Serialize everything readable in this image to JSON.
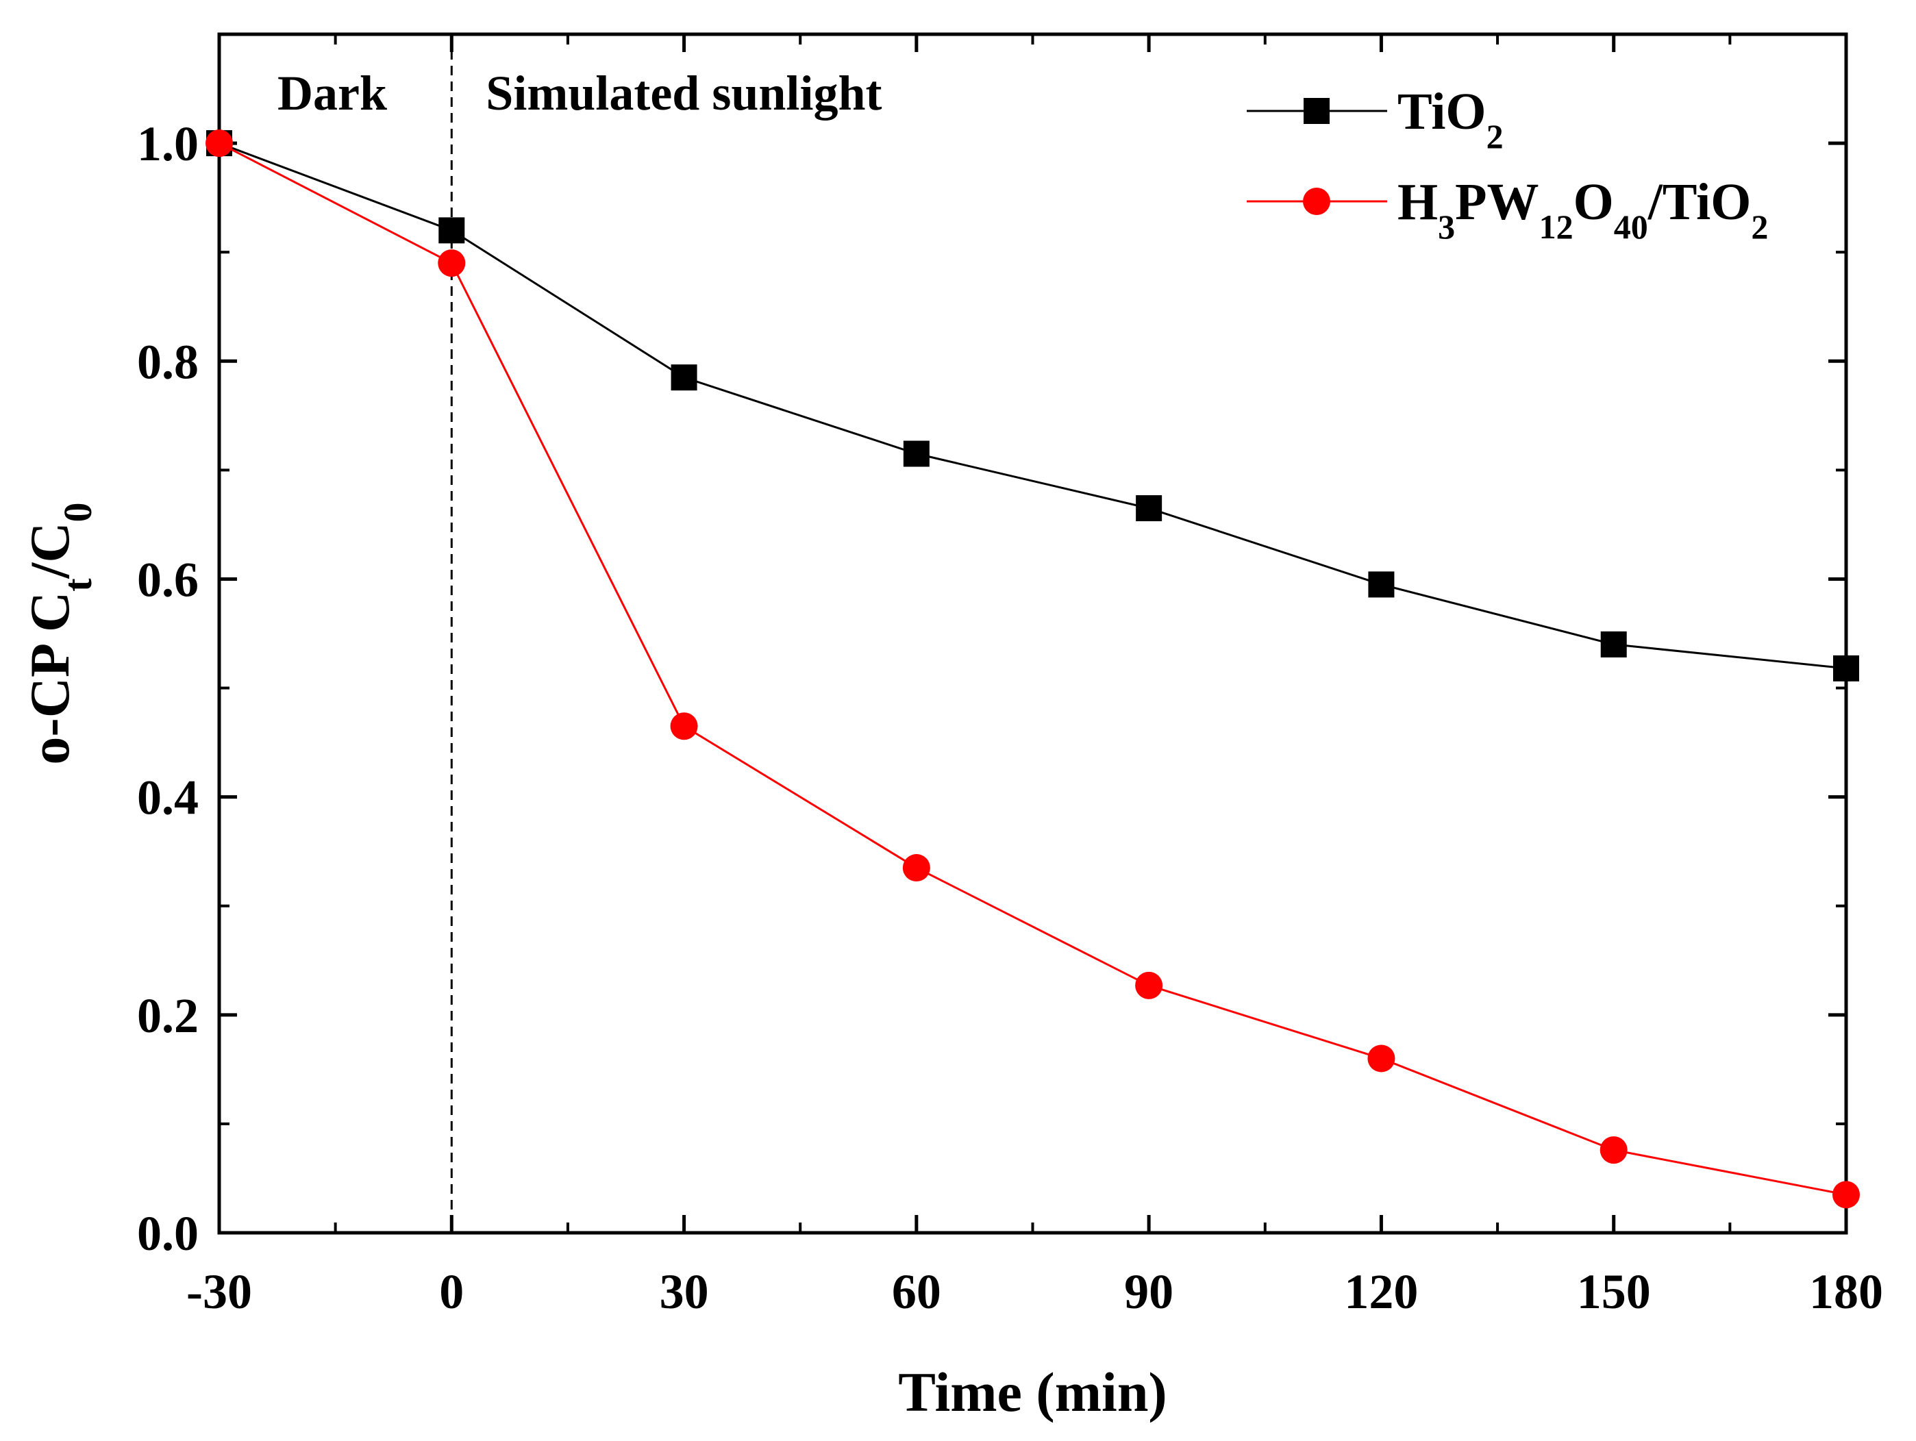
{
  "chart_data": {
    "type": "line",
    "title": "",
    "xlabel": "Time (min)",
    "ylabel": {
      "prefix": "o-CP C",
      "sub1": "t",
      "mid": "/C",
      "sub2": "0"
    },
    "xlim": [
      -30,
      180
    ],
    "ylim": [
      0.0,
      1.1
    ],
    "xticks": [
      -30,
      0,
      30,
      60,
      90,
      120,
      150,
      180
    ],
    "xtick_labels": [
      "-30",
      "0",
      "30",
      "60",
      "90",
      "120",
      "150",
      "180"
    ],
    "yticks": [
      0.0,
      0.2,
      0.4,
      0.6,
      0.8,
      1.0
    ],
    "ytick_labels": [
      "0.0",
      "0.2",
      "0.4",
      "0.6",
      "0.8",
      "1.0"
    ],
    "grid": false,
    "legend_position": "top-right",
    "annotations": {
      "dark": "Dark",
      "light": "Simulated sunlight",
      "divider_x": 0
    },
    "x": [
      -30,
      0,
      30,
      60,
      90,
      120,
      150,
      180
    ],
    "series": [
      {
        "name": "TiO2",
        "label_parts": [
          {
            "t": "TiO",
            "sub": false
          },
          {
            "t": "2",
            "sub": true
          }
        ],
        "color": "#000000",
        "marker": "square",
        "values": [
          1.0,
          0.92,
          0.785,
          0.715,
          0.665,
          0.595,
          0.54,
          0.518
        ]
      },
      {
        "name": "H3PW12O40/TiO2",
        "label_parts": [
          {
            "t": "H",
            "sub": false
          },
          {
            "t": "3",
            "sub": true
          },
          {
            "t": "PW",
            "sub": false
          },
          {
            "t": "12",
            "sub": true
          },
          {
            "t": "O",
            "sub": false
          },
          {
            "t": "40",
            "sub": true
          },
          {
            "t": "/TiO",
            "sub": false
          },
          {
            "t": "2",
            "sub": true
          }
        ],
        "color": "#ff0000",
        "marker": "circle",
        "values": [
          1.0,
          0.89,
          0.465,
          0.335,
          0.227,
          0.16,
          0.076,
          0.035
        ]
      }
    ]
  }
}
